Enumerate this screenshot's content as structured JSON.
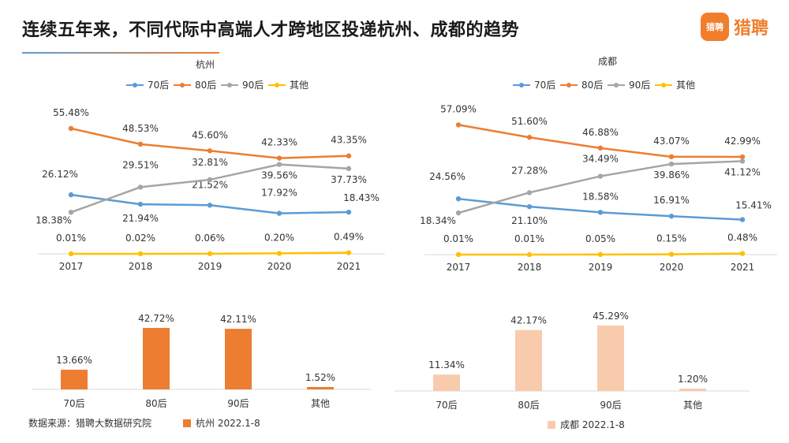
{
  "page": {
    "title": "连续五年来，不同代际中高端人才跨地区投递杭州、成都的趋势",
    "brand_icon_text": "猎聘",
    "brand_name": "猎聘",
    "source": "数据来源：猎聘大数据研究院"
  },
  "chart_data": [
    {
      "type": "line",
      "title": "杭州",
      "categories": [
        "2017",
        "2018",
        "2019",
        "2020",
        "2021"
      ],
      "series": [
        {
          "name": "70后",
          "color": "#5b9bd5",
          "values": [
            26.12,
            21.94,
            21.52,
            17.92,
            18.43
          ],
          "labels": [
            "26.12%",
            "21.94%",
            "21.52%",
            "17.92%",
            "18.43%"
          ]
        },
        {
          "name": "80后",
          "color": "#ed7d31",
          "values": [
            55.48,
            48.53,
            45.6,
            42.33,
            43.35
          ],
          "labels": [
            "55.48%",
            "48.53%",
            "45.60%",
            "42.33%",
            "43.35%"
          ]
        },
        {
          "name": "90后",
          "color": "#a5a5a5",
          "values": [
            18.38,
            29.51,
            32.81,
            39.56,
            37.73
          ],
          "labels": [
            "18.38%",
            "29.51%",
            "32.81%",
            "39.56%",
            "37.73%"
          ]
        },
        {
          "name": "其他",
          "color": "#ffc000",
          "values": [
            0.01,
            0.02,
            0.06,
            0.2,
            0.49
          ],
          "labels": [
            "0.01%",
            "0.02%",
            "0.06%",
            "0.20%",
            "0.49%"
          ]
        }
      ]
    },
    {
      "type": "line",
      "title": "成都",
      "categories": [
        "2017",
        "2018",
        "2019",
        "2020",
        "2021"
      ],
      "series": [
        {
          "name": "70后",
          "color": "#5b9bd5",
          "values": [
            24.56,
            21.1,
            18.58,
            16.91,
            15.41
          ],
          "labels": [
            "24.56%",
            "21.10%",
            "18.58%",
            "16.91%",
            "15.41%"
          ]
        },
        {
          "name": "80后",
          "color": "#ed7d31",
          "values": [
            57.09,
            51.6,
            46.88,
            43.07,
            42.99
          ],
          "labels": [
            "57.09%",
            "51.60%",
            "46.88%",
            "43.07%",
            "42.99%"
          ]
        },
        {
          "name": "90后",
          "color": "#a5a5a5",
          "values": [
            18.34,
            27.28,
            34.49,
            39.86,
            41.12
          ],
          "labels": [
            "18.34%",
            "27.28%",
            "34.49%",
            "39.86%",
            "41.12%"
          ]
        },
        {
          "name": "其他",
          "color": "#ffc000",
          "values": [
            0.01,
            0.01,
            0.05,
            0.15,
            0.48
          ],
          "labels": [
            "0.01%",
            "0.01%",
            "0.05%",
            "0.15%",
            "0.48%"
          ]
        }
      ]
    },
    {
      "type": "bar",
      "categories": [
        "70后",
        "80后",
        "90后",
        "其他"
      ],
      "series": [
        {
          "name": "杭州 2022.1-8",
          "color": "#ed7d31",
          "values": [
            13.66,
            42.72,
            42.11,
            1.52
          ],
          "labels": [
            "13.66%",
            "42.72%",
            "42.11%",
            "1.52%"
          ]
        }
      ]
    },
    {
      "type": "bar",
      "categories": [
        "70后",
        "80后",
        "90后",
        "其他"
      ],
      "series": [
        {
          "name": "成都 2022.1-8",
          "color": "#f8cbad",
          "values": [
            11.34,
            42.17,
            45.29,
            1.2
          ],
          "labels": [
            "11.34%",
            "42.17%",
            "45.29%",
            "1.20%"
          ]
        }
      ]
    }
  ]
}
